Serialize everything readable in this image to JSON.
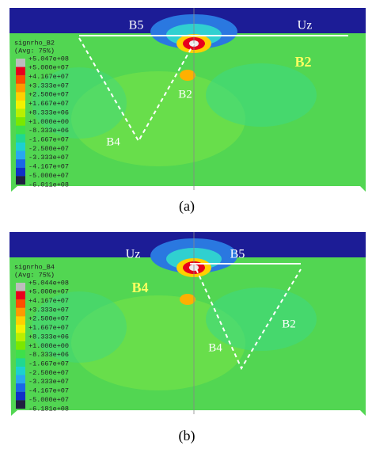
{
  "panels": [
    {
      "legend": {
        "title": "signrho_B2",
        "subtitle": "(Avg: 75%)",
        "labels": [
          "+5.047e+08",
          "+5.000e+07",
          "+4.167e+07",
          "+3.333e+07",
          "+2.500e+07",
          "+1.667e+07",
          "+8.333e+06",
          "+1.000e+00",
          "-8.333e+06",
          "-1.667e+07",
          "-2.500e+07",
          "-3.333e+07",
          "-4.167e+07",
          "-5.000e+07",
          "-6.011e+08"
        ],
        "colors": [
          "#bdbdbd",
          "#e8001c",
          "#ff4d00",
          "#ff9a00",
          "#ffd000",
          "#f2f200",
          "#b8f000",
          "#7ae800",
          "#3ee04a",
          "#20d890",
          "#1cd0d0",
          "#28a8f0",
          "#1a68e8",
          "#1030c8",
          "#202040"
        ]
      },
      "annotations": [
        "B5",
        "Uz",
        "B2",
        "B2",
        "B4"
      ],
      "caption": "(a)"
    },
    {
      "legend": {
        "title": "signrho_B4",
        "subtitle": "(Avg: 75%)",
        "labels": [
          "+5.044e+08",
          "+5.000e+07",
          "+4.167e+07",
          "+3.333e+07",
          "+2.500e+07",
          "+1.667e+07",
          "+8.333e+06",
          "+1.000e+00",
          "-8.333e+06",
          "-1.667e+07",
          "-2.500e+07",
          "-3.333e+07",
          "-4.167e+07",
          "-5.000e+07",
          "-6.181e+08"
        ],
        "colors": [
          "#bdbdbd",
          "#e8001c",
          "#ff4d00",
          "#ff9a00",
          "#ffd000",
          "#f2f200",
          "#b8f000",
          "#7ae800",
          "#3ee04a",
          "#20d890",
          "#1cd0d0",
          "#28a8f0",
          "#1a68e8",
          "#1030c8",
          "#202040"
        ]
      },
      "annotations": [
        "Uz",
        "B5",
        "B4",
        "B4",
        "B2"
      ],
      "caption": "(b)"
    }
  ]
}
